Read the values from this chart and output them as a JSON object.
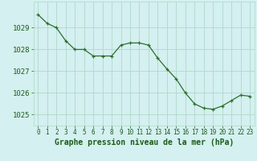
{
  "x": [
    0,
    1,
    2,
    3,
    4,
    5,
    6,
    7,
    8,
    9,
    10,
    11,
    12,
    13,
    14,
    15,
    16,
    17,
    18,
    19,
    20,
    21,
    22,
    23
  ],
  "y": [
    1029.6,
    1029.2,
    1029.0,
    1028.4,
    1028.0,
    1028.0,
    1027.7,
    1027.7,
    1027.7,
    1028.2,
    1028.3,
    1028.3,
    1028.2,
    1027.6,
    1027.1,
    1026.65,
    1026.0,
    1025.5,
    1025.3,
    1025.25,
    1025.4,
    1025.65,
    1025.9,
    1025.85
  ],
  "line_color": "#2d6e2d",
  "marker": "+",
  "marker_size": 3.5,
  "marker_color": "#2d6e2d",
  "bg_color": "#d4f0f0",
  "grid_color": "#b0d8cc",
  "xlabel": "Graphe pression niveau de la mer (hPa)",
  "xlabel_color": "#1a5c1a",
  "xlabel_fontsize": 7.0,
  "tick_color": "#1a5c1a",
  "ytick_fontsize": 6.5,
  "xtick_fontsize": 5.5,
  "ylim": [
    1024.5,
    1030.2
  ],
  "yticks": [
    1025,
    1026,
    1027,
    1028,
    1029
  ],
  "xlim": [
    -0.5,
    23.5
  ],
  "xticks": [
    0,
    1,
    2,
    3,
    4,
    5,
    6,
    7,
    8,
    9,
    10,
    11,
    12,
    13,
    14,
    15,
    16,
    17,
    18,
    19,
    20,
    21,
    22,
    23
  ]
}
